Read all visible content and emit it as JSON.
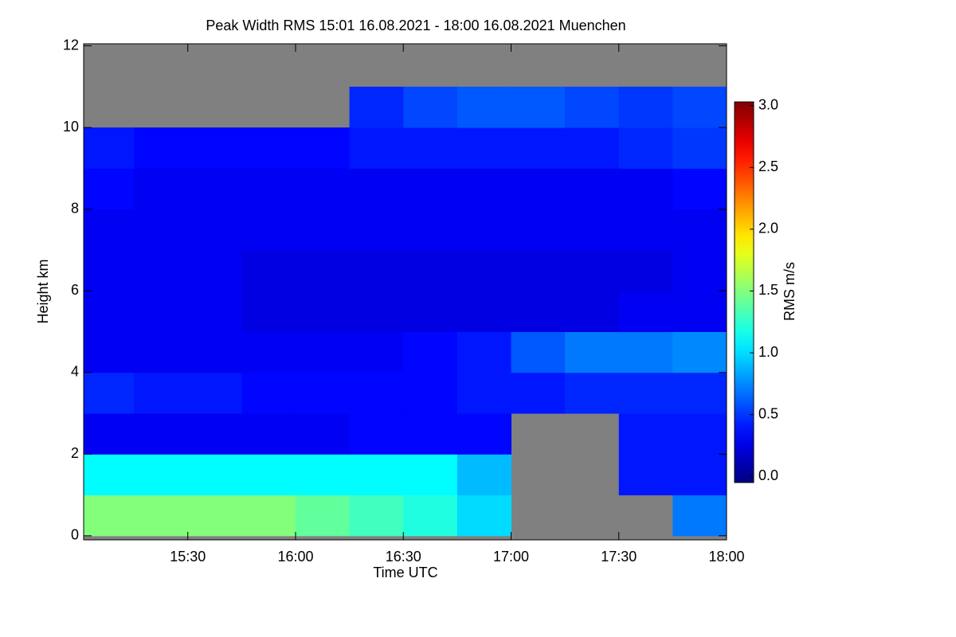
{
  "chart_data": {
    "type": "heatmap",
    "title": "Peak Width RMS   15:01 16.08.2021 - 18:00 16.08.2021 Muenchen",
    "x_label": "Time UTC",
    "y_label": "Height km",
    "colorbar_label": "RMS m/s",
    "colormap": "jet",
    "nodata_color": "#808080",
    "x_edges": [
      15,
      15.25,
      15.5,
      15.75,
      16,
      16.25,
      16.5,
      16.75,
      17,
      17.25,
      17.5,
      17.75,
      18
    ],
    "y_edges": [
      0,
      1,
      2,
      3,
      4,
      5,
      6,
      7,
      8,
      9,
      10,
      11,
      12
    ],
    "values": [
      [
        1.5,
        1.5,
        1.5,
        1.5,
        1.4,
        1.3,
        1.2,
        1.0,
        null,
        null,
        null,
        0.7
      ],
      [
        1.1,
        1.1,
        1.1,
        1.1,
        1.1,
        1.1,
        1.1,
        0.9,
        null,
        null,
        0.4,
        0.4
      ],
      [
        0.3,
        0.3,
        0.3,
        0.3,
        0.3,
        0.35,
        0.35,
        0.35,
        null,
        null,
        0.4,
        0.4
      ],
      [
        0.45,
        0.4,
        0.4,
        0.35,
        0.35,
        0.35,
        0.35,
        0.4,
        0.4,
        0.45,
        0.45,
        0.45
      ],
      [
        0.3,
        0.3,
        0.3,
        0.3,
        0.3,
        0.3,
        0.35,
        0.4,
        0.6,
        0.7,
        0.7,
        0.75
      ],
      [
        0.3,
        0.3,
        0.3,
        0.25,
        0.25,
        0.25,
        0.25,
        0.25,
        0.25,
        0.25,
        0.3,
        0.3
      ],
      [
        0.3,
        0.3,
        0.3,
        0.25,
        0.25,
        0.25,
        0.25,
        0.25,
        0.25,
        0.25,
        0.25,
        0.3
      ],
      [
        0.3,
        0.3,
        0.3,
        0.3,
        0.3,
        0.3,
        0.3,
        0.3,
        0.3,
        0.3,
        0.3,
        0.3
      ],
      [
        0.35,
        0.3,
        0.3,
        0.3,
        0.3,
        0.3,
        0.3,
        0.3,
        0.3,
        0.3,
        0.3,
        0.35
      ],
      [
        0.4,
        0.35,
        0.35,
        0.35,
        0.35,
        0.4,
        0.4,
        0.4,
        0.4,
        0.4,
        0.45,
        0.5
      ],
      [
        null,
        null,
        null,
        null,
        null,
        0.45,
        0.55,
        0.6,
        0.6,
        0.55,
        0.5,
        0.55
      ],
      [
        null,
        null,
        null,
        null,
        null,
        null,
        null,
        null,
        null,
        null,
        null,
        null
      ]
    ],
    "xlim": [
      15.0167,
      18
    ],
    "ylim": [
      -0.1,
      12.05
    ],
    "xticks": [
      {
        "value": 15.5,
        "label": "15:30"
      },
      {
        "value": 16,
        "label": "16:00"
      },
      {
        "value": 16.5,
        "label": "16:30"
      },
      {
        "value": 17,
        "label": "17:00"
      },
      {
        "value": 17.5,
        "label": "17:30"
      },
      {
        "value": 18,
        "label": "18:00"
      }
    ],
    "yticks": [
      0,
      2,
      4,
      6,
      8,
      10,
      12
    ],
    "clim": [
      -0.05,
      3.03
    ],
    "cticks": [
      {
        "value": 0,
        "label": "0.0"
      },
      {
        "value": 0.5,
        "label": "0.5"
      },
      {
        "value": 1,
        "label": "1.0"
      },
      {
        "value": 1.5,
        "label": "1.5"
      },
      {
        "value": 2,
        "label": "2.0"
      },
      {
        "value": 2.5,
        "label": "2.5"
      },
      {
        "value": 3,
        "label": "3.0"
      }
    ]
  }
}
